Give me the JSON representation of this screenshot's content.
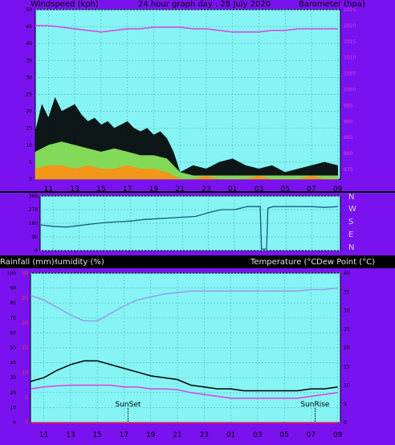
{
  "header": {
    "windspeed": "Windspeed (kph)",
    "title": "24 hour graph day : 28 July 2020",
    "barometer": "Barometer (hpa)"
  },
  "temp_header": {
    "rain": "Rainfall (mm)",
    "humidity": "Humidity (%)",
    "temp": "Temperature (°C)",
    "dewpoint": "Dew Point (°C)"
  },
  "direction_labels": [
    "N",
    "W",
    "S",
    "E",
    "N"
  ],
  "annotations": {
    "sunset": "SunSet",
    "sunrise": "SunRise"
  },
  "colors": {
    "frame": "#7a12f0",
    "plot_bg": "#86f4f4",
    "grid": "#5cc0c0",
    "gust": "#000000",
    "wind_avg": "#90ee60",
    "wind_low": "#ff9010",
    "barometer": "#e040e0",
    "direction": "#1a5a80",
    "humidity": "#9a90f0",
    "temperature": "#000000",
    "dewpoint": "#e040e0",
    "rain": "#ff3030"
  },
  "chart_data": [
    {
      "type": "line",
      "title": "24 hour graph day : 28 July 2020",
      "ylabel": "Windspeed (kph)",
      "y2label": "Barometer (hpa)",
      "xticks": [
        "11",
        "13",
        "15",
        "17",
        "19",
        "21",
        "23",
        "01",
        "03",
        "05",
        "07",
        "09"
      ],
      "xlim": [
        10,
        33.2
      ],
      "ylim": [
        0,
        50
      ],
      "yticks": [
        0,
        5,
        10,
        15,
        20,
        25,
        30,
        35,
        40,
        45,
        50
      ],
      "y2lim": [
        972,
        1025
      ],
      "y2ticks": [
        975,
        980,
        985,
        990,
        995,
        1000,
        1005,
        1010,
        1015,
        1020,
        1025
      ],
      "grid": true,
      "series": [
        {
          "name": "gust",
          "x": [
            10,
            10.5,
            11,
            11.5,
            12,
            12.5,
            13,
            13.5,
            14,
            14.5,
            15,
            15.5,
            16,
            16.5,
            17,
            17.5,
            18,
            18.5,
            19,
            19.5,
            20,
            20.5,
            21,
            22,
            23,
            24,
            25,
            26,
            27,
            28,
            29,
            30,
            31,
            32,
            33
          ],
          "values": [
            14,
            22,
            18,
            24,
            20,
            21,
            22,
            19,
            17,
            18,
            16,
            17,
            15,
            16,
            17,
            15,
            14,
            15,
            13,
            14,
            12,
            8,
            2,
            4,
            3,
            5,
            6,
            4,
            3,
            4,
            2,
            3,
            4,
            5,
            4
          ]
        },
        {
          "name": "avg",
          "x": [
            10,
            11,
            12,
            13,
            14,
            15,
            16,
            17,
            18,
            19,
            20,
            21,
            22,
            23,
            24,
            25,
            26,
            27,
            28,
            29,
            30,
            31,
            32,
            33
          ],
          "values": [
            8,
            10,
            11,
            10,
            9,
            8,
            9,
            8,
            7,
            7,
            6,
            2,
            1,
            1,
            1,
            1,
            1,
            1,
            1,
            1,
            1,
            1,
            1,
            1
          ]
        },
        {
          "name": "low",
          "x": [
            10,
            11,
            12,
            13,
            14,
            15,
            16,
            17,
            18,
            19,
            20,
            21,
            22,
            23,
            24,
            25,
            26,
            27,
            28,
            29,
            30,
            31,
            32,
            33
          ],
          "values": [
            3,
            4,
            4,
            3,
            4,
            3,
            3,
            4,
            3,
            3,
            2,
            0,
            0,
            1,
            0,
            0,
            0,
            1,
            0,
            0,
            0,
            1,
            0,
            0
          ]
        },
        {
          "name": "barometer",
          "axis": "right",
          "x": [
            10,
            11,
            12,
            13,
            14,
            15,
            16,
            17,
            18,
            19,
            20,
            21,
            22,
            23,
            24,
            25,
            26,
            27,
            28,
            29,
            30,
            31,
            32,
            33
          ],
          "values": [
            1020,
            1020,
            1019.5,
            1019,
            1018.5,
            1018,
            1018.5,
            1019,
            1019,
            1019.5,
            1019.5,
            1019.5,
            1019,
            1019,
            1018.5,
            1018,
            1018,
            1018,
            1018.5,
            1018.5,
            1019,
            1019,
            1019,
            1019
          ]
        }
      ]
    },
    {
      "type": "line",
      "ylabel": "Wind direction",
      "xlim": [
        10,
        33.2
      ],
      "ylim": [
        0,
        360
      ],
      "yticks": [
        0,
        90,
        180,
        270,
        360
      ],
      "grid": true,
      "series": [
        {
          "name": "direction",
          "x": [
            10,
            11,
            12,
            13,
            14,
            15,
            16,
            17,
            18,
            19,
            20,
            21,
            22,
            23,
            24,
            25,
            26,
            27,
            27.1,
            27.5,
            27.6,
            28,
            29,
            30,
            31,
            32,
            33
          ],
          "values": [
            170,
            160,
            155,
            165,
            175,
            185,
            190,
            195,
            205,
            210,
            215,
            220,
            225,
            250,
            270,
            270,
            290,
            290,
            10,
            10,
            280,
            290,
            290,
            290,
            290,
            285,
            290
          ]
        }
      ]
    },
    {
      "type": "line",
      "y_left_label": "Rainfall (mm) / Humidity (%)",
      "y_right_label": "Temperature (°C) / Dew Point (°C)",
      "xticks": [
        "11",
        "13",
        "15",
        "17",
        "19",
        "21",
        "23",
        "01",
        "03",
        "05",
        "07",
        "09"
      ],
      "xlim": [
        10,
        33.2
      ],
      "ylim": [
        0,
        100
      ],
      "yticks": [
        0,
        10,
        20,
        30,
        40,
        50,
        60,
        70,
        80,
        90,
        100
      ],
      "y_rain_ticks": [
        0,
        5,
        10,
        15,
        20,
        25,
        30
      ],
      "y2lim": [
        0,
        40
      ],
      "y2ticks": [
        0,
        5,
        10,
        15,
        20,
        25,
        30,
        35,
        40
      ],
      "grid": true,
      "series": [
        {
          "name": "humidity",
          "x": [
            10,
            11,
            12,
            13,
            14,
            15,
            16,
            17,
            18,
            19,
            20,
            21,
            22,
            23,
            24,
            25,
            26,
            27,
            28,
            29,
            30,
            31,
            32,
            33
          ],
          "values": [
            85,
            82,
            77,
            72,
            68,
            68,
            73,
            78,
            82,
            84,
            86,
            87,
            88,
            88,
            88,
            88,
            88,
            88,
            88,
            88,
            88,
            89,
            89,
            90
          ]
        },
        {
          "name": "temperature",
          "axis": "right",
          "x": [
            10,
            11,
            12,
            13,
            14,
            15,
            16,
            17,
            18,
            19,
            20,
            21,
            22,
            23,
            24,
            25,
            26,
            27,
            28,
            29,
            30,
            31,
            32,
            33
          ],
          "values": [
            11,
            12,
            14,
            15.5,
            16.5,
            16.5,
            15.5,
            14.5,
            13.5,
            12.5,
            12,
            11.5,
            10,
            9.5,
            9,
            9,
            8.5,
            8.5,
            8.5,
            8.5,
            8.5,
            9,
            9,
            9.5
          ]
        },
        {
          "name": "dewpoint",
          "axis": "right",
          "x": [
            10,
            11,
            12,
            13,
            14,
            15,
            16,
            17,
            18,
            19,
            20,
            21,
            22,
            23,
            24,
            25,
            26,
            27,
            28,
            29,
            30,
            31,
            32,
            33
          ],
          "values": [
            9,
            9.5,
            9.8,
            10,
            10,
            10,
            10,
            9.5,
            9.5,
            9,
            9,
            8.8,
            8,
            7.5,
            7,
            6.5,
            6.5,
            6.5,
            6.5,
            6.5,
            6.5,
            7,
            7.5,
            8
          ]
        },
        {
          "name": "rain",
          "x": [
            10,
            33
          ],
          "values": [
            0,
            0
          ]
        }
      ]
    }
  ]
}
